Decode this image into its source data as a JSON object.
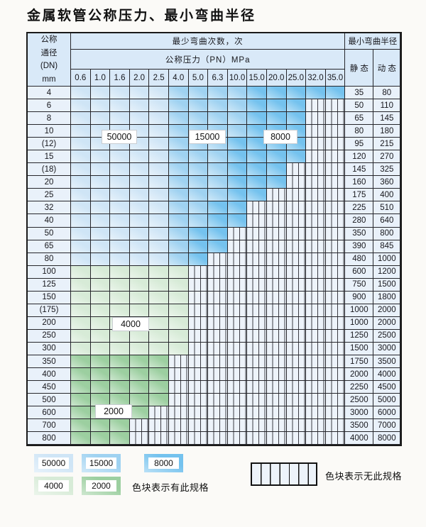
{
  "title": "金属软管公称压力、最小弯曲半径",
  "colors": {
    "cycle_50000": "#cfe5f6",
    "cycle_15000": "#9fd2f1",
    "cycle_8000": "#74c2ee",
    "cycle_4000": "#d7ebd7",
    "cycle_2000": "#9ccfa0",
    "no_spec_hatch_bg": "#edf3fa",
    "header_bg": "#d9e9f8",
    "label_col_bg": "#e9f1fa",
    "grid_line": "#26262b"
  },
  "table": {
    "dn_header_lines": [
      "公称",
      "通径",
      "(DN)",
      "mm"
    ],
    "cycles_header": "最少弯曲次数，次",
    "pressure_header": "公称压力（PN）MPa",
    "radius_header": "最小弯曲半径",
    "static_header": "静 态",
    "dynamic_header": "动 态",
    "pressure_columns": [
      "0.6",
      "1.0",
      "1.6",
      "2.0",
      "2.5",
      "4.0",
      "5.0",
      "6.3",
      "10.0",
      "15.0",
      "20.0",
      "25.0",
      "32.0",
      "35.0"
    ],
    "cell_code_legend": {
      "b1": "50000次 色块",
      "b2": "15000次 色块",
      "b3": "8000次 色块",
      "g1": "4000次 色块",
      "g2": "2000次 色块",
      "x": "无此规格"
    },
    "rows": [
      {
        "dn": "4",
        "static": "35",
        "dynamic": "80",
        "cells": [
          "b1",
          "b1",
          "b1",
          "b1",
          "b1",
          "b2",
          "b2",
          "b2",
          "b2",
          "b3",
          "b3",
          "b3",
          "b3",
          "b3"
        ]
      },
      {
        "dn": "6",
        "static": "50",
        "dynamic": "110",
        "cells": [
          "b1",
          "b1",
          "b1",
          "b1",
          "b1",
          "b2",
          "b2",
          "b2",
          "b2",
          "b3",
          "b3",
          "b3",
          "x",
          "x"
        ]
      },
      {
        "dn": "8",
        "static": "65",
        "dynamic": "145",
        "cells": [
          "b1",
          "b1",
          "b1",
          "b1",
          "b1",
          "b2",
          "b2",
          "b2",
          "b2",
          "b3",
          "b3",
          "b3",
          "x",
          "x"
        ]
      },
      {
        "dn": "10",
        "static": "80",
        "dynamic": "180",
        "cells": [
          "b1",
          "b1",
          "b1",
          "b1",
          "b1",
          "b2",
          "b2",
          "b2",
          "b2",
          "b3",
          "b3",
          "b3",
          "x",
          "x"
        ]
      },
      {
        "dn": "(12)",
        "static": "95",
        "dynamic": "215",
        "cells": [
          "b1",
          "b1",
          "b1",
          "b1",
          "b1",
          "b2",
          "b2",
          "b2",
          "b3",
          "b3",
          "b3",
          "b3",
          "x",
          "x"
        ]
      },
      {
        "dn": "15",
        "static": "120",
        "dynamic": "270",
        "cells": [
          "b1",
          "b1",
          "b1",
          "b1",
          "b1",
          "b2",
          "b2",
          "b2",
          "b3",
          "b3",
          "b3",
          "b3",
          "x",
          "x"
        ]
      },
      {
        "dn": "(18)",
        "static": "145",
        "dynamic": "325",
        "cells": [
          "b1",
          "b1",
          "b1",
          "b1",
          "b1",
          "b2",
          "b2",
          "b2",
          "b3",
          "b3",
          "b3",
          "x",
          "x",
          "x"
        ]
      },
      {
        "dn": "20",
        "static": "160",
        "dynamic": "360",
        "cells": [
          "b1",
          "b1",
          "b1",
          "b1",
          "b1",
          "b2",
          "b2",
          "b2",
          "b3",
          "b3",
          "b3",
          "x",
          "x",
          "x"
        ]
      },
      {
        "dn": "25",
        "static": "175",
        "dynamic": "400",
        "cells": [
          "b1",
          "b1",
          "b1",
          "b1",
          "b1",
          "b2",
          "b2",
          "b2",
          "b3",
          "b3",
          "x",
          "x",
          "x",
          "x"
        ]
      },
      {
        "dn": "32",
        "static": "225",
        "dynamic": "510",
        "cells": [
          "b1",
          "b1",
          "b1",
          "b1",
          "b1",
          "b2",
          "b2",
          "b3",
          "b3",
          "x",
          "x",
          "x",
          "x",
          "x"
        ]
      },
      {
        "dn": "40",
        "static": "280",
        "dynamic": "640",
        "cells": [
          "b1",
          "b1",
          "b1",
          "b1",
          "b1",
          "b2",
          "b2",
          "b3",
          "b3",
          "x",
          "x",
          "x",
          "x",
          "x"
        ]
      },
      {
        "dn": "50",
        "static": "350",
        "dynamic": "800",
        "cells": [
          "b1",
          "b1",
          "b1",
          "b1",
          "b1",
          "b2",
          "b3",
          "b3",
          "x",
          "x",
          "x",
          "x",
          "x",
          "x"
        ]
      },
      {
        "dn": "65",
        "static": "390",
        "dynamic": "845",
        "cells": [
          "b1",
          "b1",
          "b1",
          "b1",
          "b1",
          "b2",
          "b3",
          "b3",
          "x",
          "x",
          "x",
          "x",
          "x",
          "x"
        ]
      },
      {
        "dn": "80",
        "static": "480",
        "dynamic": "1000",
        "cells": [
          "b1",
          "b1",
          "b1",
          "b1",
          "b1",
          "b2",
          "b3",
          "x",
          "x",
          "x",
          "x",
          "x",
          "x",
          "x"
        ]
      },
      {
        "dn": "100",
        "static": "600",
        "dynamic": "1200",
        "cells": [
          "g1",
          "g1",
          "g1",
          "g1",
          "g1",
          "g1",
          "x",
          "x",
          "x",
          "x",
          "x",
          "x",
          "x",
          "x"
        ]
      },
      {
        "dn": "125",
        "static": "750",
        "dynamic": "1500",
        "cells": [
          "g1",
          "g1",
          "g1",
          "g1",
          "g1",
          "g1",
          "x",
          "x",
          "x",
          "x",
          "x",
          "x",
          "x",
          "x"
        ]
      },
      {
        "dn": "150",
        "static": "900",
        "dynamic": "1800",
        "cells": [
          "g1",
          "g1",
          "g1",
          "g1",
          "g1",
          "g1",
          "x",
          "x",
          "x",
          "x",
          "x",
          "x",
          "x",
          "x"
        ]
      },
      {
        "dn": "(175)",
        "static": "1000",
        "dynamic": "2000",
        "cells": [
          "g1",
          "g1",
          "g1",
          "g1",
          "g1",
          "g1",
          "x",
          "x",
          "x",
          "x",
          "x",
          "x",
          "x",
          "x"
        ]
      },
      {
        "dn": "200",
        "static": "1000",
        "dynamic": "2000",
        "cells": [
          "g1",
          "g1",
          "g1",
          "g1",
          "g1",
          "g1",
          "x",
          "x",
          "x",
          "x",
          "x",
          "x",
          "x",
          "x"
        ]
      },
      {
        "dn": "250",
        "static": "1250",
        "dynamic": "2500",
        "cells": [
          "g1",
          "g1",
          "g1",
          "g1",
          "g1",
          "g1",
          "x",
          "x",
          "x",
          "x",
          "x",
          "x",
          "x",
          "x"
        ]
      },
      {
        "dn": "300",
        "static": "1500",
        "dynamic": "3000",
        "cells": [
          "g1",
          "g1",
          "g1",
          "g1",
          "g1",
          "g1",
          "x",
          "x",
          "x",
          "x",
          "x",
          "x",
          "x",
          "x"
        ]
      },
      {
        "dn": "350",
        "static": "1750",
        "dynamic": "3500",
        "cells": [
          "g2",
          "g2",
          "g2",
          "g2",
          "g2",
          "x",
          "x",
          "x",
          "x",
          "x",
          "x",
          "x",
          "x",
          "x"
        ]
      },
      {
        "dn": "400",
        "static": "2000",
        "dynamic": "4000",
        "cells": [
          "g2",
          "g2",
          "g2",
          "g2",
          "g2",
          "x",
          "x",
          "x",
          "x",
          "x",
          "x",
          "x",
          "x",
          "x"
        ]
      },
      {
        "dn": "450",
        "static": "2250",
        "dynamic": "4500",
        "cells": [
          "g2",
          "g2",
          "g2",
          "g2",
          "g2",
          "x",
          "x",
          "x",
          "x",
          "x",
          "x",
          "x",
          "x",
          "x"
        ]
      },
      {
        "dn": "500",
        "static": "2500",
        "dynamic": "5000",
        "cells": [
          "g2",
          "g2",
          "g2",
          "g2",
          "g2",
          "x",
          "x",
          "x",
          "x",
          "x",
          "x",
          "x",
          "x",
          "x"
        ]
      },
      {
        "dn": "600",
        "static": "3000",
        "dynamic": "6000",
        "cells": [
          "g2",
          "g2",
          "g2",
          "g2",
          "x",
          "x",
          "x",
          "x",
          "x",
          "x",
          "x",
          "x",
          "x",
          "x"
        ]
      },
      {
        "dn": "700",
        "static": "3500",
        "dynamic": "7000",
        "cells": [
          "g2",
          "g2",
          "g2",
          "x",
          "x",
          "x",
          "x",
          "x",
          "x",
          "x",
          "x",
          "x",
          "x",
          "x"
        ]
      },
      {
        "dn": "800",
        "static": "4000",
        "dynamic": "8000",
        "cells": [
          "g2",
          "g2",
          "g2",
          "x",
          "x",
          "x",
          "x",
          "x",
          "x",
          "x",
          "x",
          "x",
          "x",
          "x"
        ]
      }
    ]
  },
  "float_labels": [
    {
      "text": "50000"
    },
    {
      "text": "15000"
    },
    {
      "text": "8000"
    },
    {
      "text": "4000"
    },
    {
      "text": "2000"
    }
  ],
  "legend": {
    "swatches": [
      {
        "label": "50000"
      },
      {
        "label": "15000"
      },
      {
        "label": "8000"
      },
      {
        "label": "4000"
      },
      {
        "label": "2000"
      }
    ],
    "available_note": "色块表示有此规格",
    "unavailable_note": "色块表示无此规格"
  }
}
